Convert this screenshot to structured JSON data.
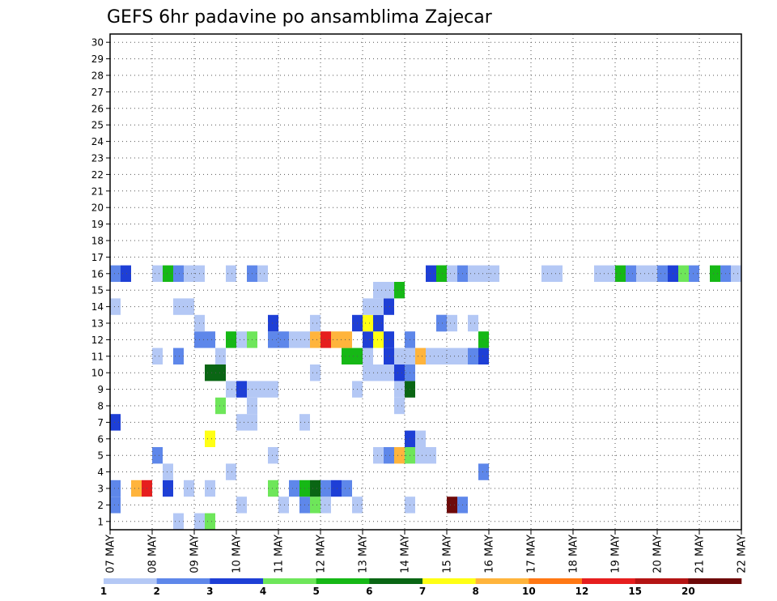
{
  "chart_data": {
    "type": "heatmap",
    "title": "GEFS 6hr padavine po ansamblima Zajecar",
    "xlabel": "",
    "ylabel": "",
    "x_ticks": [
      "07 MAY",
      "08 MAY",
      "09 MAY",
      "10 MAY",
      "11 MAY",
      "12 MAY",
      "13 MAY",
      "14 MAY",
      "15 MAY",
      "16 MAY",
      "17 MAY",
      "18 MAY",
      "19 MAY",
      "20 MAY",
      "21 MAY",
      "22 MAY"
    ],
    "y_range": [
      0,
      30
    ],
    "y_ticks": [
      1,
      2,
      3,
      4,
      5,
      6,
      7,
      8,
      9,
      10,
      11,
      12,
      13,
      14,
      15,
      16,
      17,
      18,
      19,
      20,
      21,
      22,
      23,
      24,
      25,
      26,
      27,
      28,
      29,
      30
    ],
    "grid": true,
    "colorbar": {
      "levels": [
        "1",
        "2",
        "3",
        "4",
        "5",
        "6",
        "7",
        "8",
        "10",
        "12",
        "15",
        "20"
      ],
      "colors": [
        "#b4c8f5",
        "#5e87ea",
        "#1e3fd6",
        "#6ee65a",
        "#16b816",
        "#0a6614",
        "#ffff14",
        "#ffb43c",
        "#ff7814",
        "#e61e1e",
        "#b41414",
        "#6e0a0a"
      ]
    },
    "steps_per_day": 4,
    "cells": [
      [
        8.5,
        0,
        1
      ],
      [
        9.0,
        0,
        1
      ],
      [
        9.25,
        0,
        4
      ],
      [
        5.5,
        1,
        4
      ],
      [
        5.75,
        1,
        2
      ],
      [
        6.0,
        1,
        1
      ],
      [
        6.25,
        1,
        1
      ],
      [
        6.75,
        1,
        6
      ],
      [
        7.0,
        1,
        2
      ],
      [
        10.0,
        1,
        1
      ],
      [
        11.0,
        1,
        1
      ],
      [
        11.5,
        1,
        2
      ],
      [
        11.75,
        1,
        4
      ],
      [
        12.0,
        1,
        1
      ],
      [
        12.75,
        1,
        1
      ],
      [
        14.0,
        1,
        1
      ],
      [
        15.0,
        1,
        12
      ],
      [
        15.25,
        1,
        2
      ],
      [
        4.75,
        2,
        2
      ],
      [
        5.0,
        2,
        3
      ],
      [
        5.5,
        2,
        2
      ],
      [
        5.75,
        2,
        2
      ],
      [
        6.0,
        2,
        6
      ],
      [
        6.75,
        2,
        7
      ],
      [
        7.0,
        2,
        2
      ],
      [
        7.5,
        2,
        8
      ],
      [
        7.75,
        2,
        10
      ],
      [
        8.25,
        2,
        3
      ],
      [
        8.75,
        2,
        1
      ],
      [
        9.25,
        2,
        1
      ],
      [
        10.75,
        2,
        4
      ],
      [
        11.25,
        2,
        2
      ],
      [
        11.5,
        2,
        5
      ],
      [
        11.75,
        2,
        6
      ],
      [
        12.0,
        2,
        2
      ],
      [
        12.25,
        2,
        3
      ],
      [
        12.5,
        2,
        2
      ],
      [
        8.25,
        3,
        1
      ],
      [
        9.75,
        3,
        1
      ],
      [
        15.75,
        3,
        2
      ],
      [
        8.0,
        4,
        2
      ],
      [
        10.75,
        4,
        1
      ],
      [
        13.25,
        4,
        1
      ],
      [
        13.5,
        4,
        2
      ],
      [
        13.75,
        4,
        8
      ],
      [
        14.0,
        4,
        4
      ],
      [
        14.25,
        4,
        1
      ],
      [
        14.5,
        4,
        1
      ],
      [
        9.25,
        5,
        7
      ],
      [
        14.0,
        5,
        3
      ],
      [
        14.25,
        5,
        1
      ],
      [
        7.0,
        6,
        3
      ],
      [
        10.0,
        6,
        1
      ],
      [
        10.25,
        6,
        1
      ],
      [
        11.5,
        6,
        1
      ],
      [
        9.5,
        7,
        4
      ],
      [
        10.25,
        7,
        1
      ],
      [
        13.75,
        7,
        1
      ],
      [
        9.75,
        8,
        1
      ],
      [
        10.0,
        8,
        3
      ],
      [
        10.25,
        8,
        1
      ],
      [
        10.5,
        8,
        1
      ],
      [
        10.75,
        8,
        1
      ],
      [
        12.75,
        8,
        1
      ],
      [
        13.75,
        8,
        1
      ],
      [
        14.0,
        8,
        6
      ],
      [
        9.25,
        9,
        6
      ],
      [
        9.5,
        9,
        6
      ],
      [
        11.75,
        9,
        1
      ],
      [
        13.0,
        9,
        1
      ],
      [
        13.25,
        9,
        1
      ],
      [
        13.5,
        9,
        1
      ],
      [
        13.75,
        9,
        3
      ],
      [
        14.0,
        9,
        2
      ],
      [
        8.0,
        10,
        1
      ],
      [
        8.5,
        10,
        2
      ],
      [
        9.5,
        10,
        1
      ],
      [
        12.5,
        10,
        5
      ],
      [
        12.75,
        10,
        5
      ],
      [
        13.0,
        10,
        1
      ],
      [
        13.5,
        10,
        3
      ],
      [
        13.75,
        10,
        1
      ],
      [
        14.0,
        10,
        1
      ],
      [
        14.25,
        10,
        8
      ],
      [
        14.5,
        10,
        1
      ],
      [
        14.75,
        10,
        1
      ],
      [
        15.0,
        10,
        1
      ],
      [
        15.25,
        10,
        1
      ],
      [
        15.5,
        10,
        2
      ],
      [
        15.75,
        10,
        3
      ],
      [
        9.0,
        11,
        2
      ],
      [
        9.25,
        11,
        2
      ],
      [
        9.75,
        11,
        5
      ],
      [
        10.0,
        11,
        1
      ],
      [
        10.25,
        11,
        4
      ],
      [
        10.75,
        11,
        2
      ],
      [
        11.0,
        11,
        2
      ],
      [
        11.25,
        11,
        1
      ],
      [
        11.5,
        11,
        1
      ],
      [
        11.75,
        11,
        8
      ],
      [
        12.0,
        11,
        10
      ],
      [
        12.25,
        11,
        8
      ],
      [
        12.5,
        11,
        8
      ],
      [
        13.0,
        11,
        3
      ],
      [
        13.25,
        11,
        7
      ],
      [
        13.5,
        11,
        3
      ],
      [
        14.0,
        11,
        2
      ],
      [
        15.75,
        11,
        5
      ],
      [
        9.0,
        12,
        1
      ],
      [
        10.75,
        12,
        3
      ],
      [
        11.75,
        12,
        1
      ],
      [
        12.75,
        12,
        3
      ],
      [
        13.0,
        12,
        7
      ],
      [
        13.25,
        12,
        3
      ],
      [
        14.75,
        12,
        2
      ],
      [
        14.75,
        12,
        2
      ],
      [
        15.0,
        12,
        1
      ],
      [
        15.5,
        12,
        1
      ],
      [
        6.5,
        13,
        1
      ],
      [
        7.0,
        13,
        1
      ],
      [
        8.5,
        13,
        1
      ],
      [
        8.75,
        13,
        1
      ],
      [
        13.0,
        13,
        1
      ],
      [
        13.25,
        13,
        1
      ],
      [
        13.5,
        13,
        3
      ],
      [
        5.0,
        14,
        1
      ],
      [
        5.25,
        14,
        1
      ],
      [
        5.5,
        14,
        1
      ],
      [
        13.25,
        14,
        1
      ],
      [
        13.5,
        14,
        1
      ],
      [
        13.75,
        14,
        5
      ],
      [
        4.25,
        15,
        2
      ],
      [
        4.5,
        15,
        3
      ],
      [
        5.25,
        15,
        1
      ],
      [
        5.75,
        15,
        2
      ],
      [
        6.0,
        15,
        2
      ],
      [
        6.5,
        15,
        3
      ],
      [
        7.0,
        15,
        2
      ],
      [
        7.25,
        15,
        3
      ],
      [
        8.0,
        15,
        1
      ],
      [
        8.25,
        15,
        5
      ],
      [
        8.5,
        15,
        2
      ],
      [
        8.75,
        15,
        1
      ],
      [
        9.0,
        15,
        1
      ],
      [
        9.75,
        15,
        1
      ],
      [
        10.25,
        15,
        2
      ],
      [
        10.5,
        15,
        1
      ],
      [
        14.75,
        15,
        5
      ],
      [
        14.5,
        15,
        3
      ],
      [
        14.75,
        15,
        5
      ],
      [
        15.0,
        15,
        1
      ],
      [
        15.25,
        15,
        2
      ],
      [
        15.5,
        15,
        1
      ],
      [
        15.75,
        15,
        1
      ],
      [
        16.0,
        15,
        1
      ],
      [
        17.25,
        15,
        1
      ],
      [
        17.5,
        15,
        1
      ],
      [
        18.5,
        15,
        1
      ],
      [
        18.75,
        15,
        1
      ],
      [
        19.0,
        15,
        5
      ],
      [
        19.25,
        15,
        2
      ],
      [
        19.5,
        15,
        1
      ],
      [
        19.75,
        15,
        1
      ],
      [
        20.0,
        15,
        2
      ],
      [
        20.25,
        15,
        3
      ],
      [
        20.5,
        15,
        4
      ],
      [
        20.75,
        15,
        2
      ],
      [
        21.25,
        15,
        5
      ],
      [
        21.5,
        15,
        2
      ],
      [
        21.75,
        15,
        1
      ],
      [
        22.0,
        15,
        1
      ],
      [
        22.25,
        15,
        1
      ],
      [
        22.5,
        15,
        1
      ],
      [
        22.75,
        15,
        1
      ],
      [
        23.0,
        15,
        1
      ],
      [
        23.25,
        15,
        3
      ],
      [
        23.5,
        15,
        2
      ],
      [
        23.75,
        15,
        2
      ],
      [
        24.0,
        15,
        3
      ],
      [
        24.25,
        15,
        3
      ],
      [
        24.5,
        15,
        2
      ],
      [
        24.75,
        15,
        2
      ],
      [
        25.0,
        15,
        2
      ],
      [
        25.25,
        15,
        1
      ],
      [
        25.5,
        15,
        1
      ],
      [
        25.75,
        15,
        3
      ],
      [
        26.0,
        15,
        1
      ],
      [
        26.25,
        15,
        3
      ],
      [
        26.5,
        15,
        1
      ],
      [
        26.75,
        15,
        1
      ],
      [
        27.0,
        15,
        1
      ],
      [
        27.25,
        15,
        1
      ]
    ]
  }
}
